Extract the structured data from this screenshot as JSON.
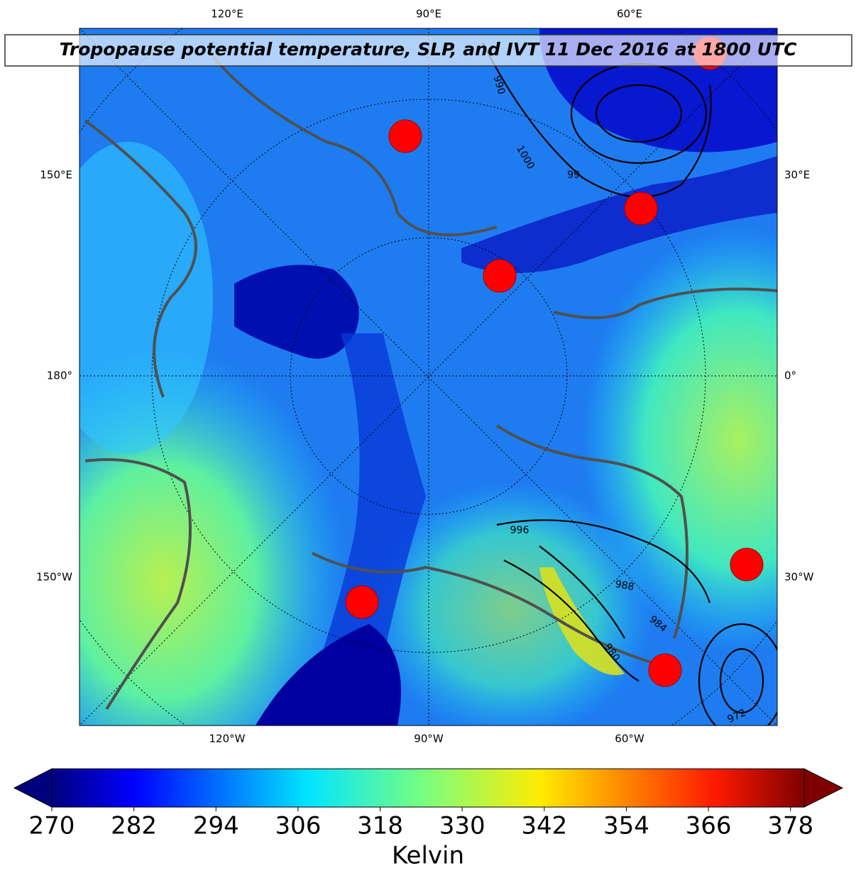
{
  "title": "Tropopause potential temperature, SLP, and IVT 11 Dec 2016 at 1800 UTC",
  "map": {
    "lon_labels_top": [
      "120°E",
      "90°E",
      "60°E"
    ],
    "lat_labels_left": [
      "150°E",
      "180°",
      "150°W"
    ],
    "lat_labels_right": [
      "30°E",
      "0°",
      "30°W"
    ],
    "lon_labels_bottom": [
      "120°W",
      "90°W",
      "60°W"
    ],
    "contour_labels": [
      "990",
      "1000",
      "99",
      "996",
      "988",
      "984",
      "980",
      "972"
    ]
  },
  "colorbar": {
    "range": [
      270,
      380
    ],
    "ticks": [
      270,
      282,
      294,
      306,
      318,
      330,
      342,
      354,
      366,
      378
    ],
    "label": "Kelvin"
  }
}
